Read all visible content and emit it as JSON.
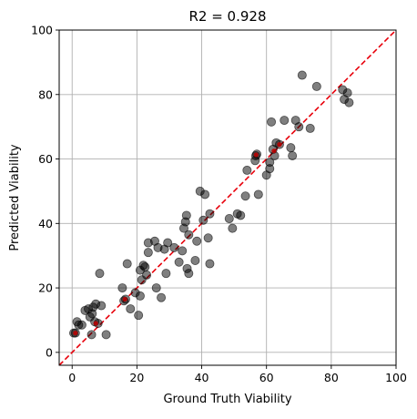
{
  "chart_data": {
    "type": "scatter",
    "title": "R2 = 0.928",
    "xlabel": "Ground Truth Viability",
    "ylabel": "Predicted Viability",
    "xlim": [
      -4,
      100
    ],
    "ylim": [
      -4,
      100
    ],
    "xticks": [
      0,
      20,
      40,
      60,
      80,
      100
    ],
    "yticks": [
      0,
      20,
      40,
      60,
      80,
      100
    ],
    "grid": true,
    "point_color": "#000000",
    "point_opacity": 0.5,
    "reference_line": {
      "style": "dashed",
      "color": "#e8000b",
      "from": [
        -4,
        -4
      ],
      "to": [
        100,
        100
      ]
    },
    "points": [
      [
        0.5,
        6
      ],
      [
        1,
        6
      ],
      [
        1.5,
        9.5
      ],
      [
        2,
        8.5
      ],
      [
        3,
        8.5
      ],
      [
        4,
        13
      ],
      [
        5,
        13.5
      ],
      [
        5.5,
        11
      ],
      [
        6,
        5.5
      ],
      [
        6.2,
        12
      ],
      [
        6.5,
        14
      ],
      [
        7,
        9.5
      ],
      [
        7.3,
        15
      ],
      [
        8,
        9
      ],
      [
        8.5,
        24.5
      ],
      [
        9,
        14.5
      ],
      [
        10.5,
        5.5
      ],
      [
        15.5,
        20
      ],
      [
        16,
        16
      ],
      [
        16.5,
        16.5
      ],
      [
        17,
        27.5
      ],
      [
        18,
        13.5
      ],
      [
        19.5,
        18.5
      ],
      [
        20.5,
        11.5
      ],
      [
        21,
        17.5
      ],
      [
        21,
        25.5
      ],
      [
        21.5,
        22.5
      ],
      [
        22,
        27
      ],
      [
        22.5,
        26.5
      ],
      [
        23,
        24
      ],
      [
        23.5,
        34
      ],
      [
        23.5,
        31
      ],
      [
        25.5,
        34.5
      ],
      [
        26,
        20
      ],
      [
        26.5,
        32.5
      ],
      [
        27.5,
        17
      ],
      [
        28.5,
        32
      ],
      [
        29,
        24.5
      ],
      [
        29.5,
        34
      ],
      [
        31.5,
        32.5
      ],
      [
        33,
        28
      ],
      [
        34,
        31.5
      ],
      [
        34.5,
        38.5
      ],
      [
        35,
        40.5
      ],
      [
        35.3,
        42.5
      ],
      [
        35.5,
        26
      ],
      [
        36,
        24.5
      ],
      [
        36,
        36.5
      ],
      [
        38,
        28.5
      ],
      [
        38.5,
        34.5
      ],
      [
        39.5,
        50
      ],
      [
        40.5,
        41
      ],
      [
        41,
        49
      ],
      [
        42,
        35.5
      ],
      [
        42.5,
        27.5
      ],
      [
        42.5,
        43
      ],
      [
        48.5,
        41.5
      ],
      [
        49.5,
        38.5
      ],
      [
        51,
        43
      ],
      [
        52,
        42.5
      ],
      [
        53.5,
        48.5
      ],
      [
        54,
        56.5
      ],
      [
        56.5,
        59.5
      ],
      [
        56.7,
        61
      ],
      [
        57,
        61.5
      ],
      [
        57.5,
        49
      ],
      [
        60,
        55
      ],
      [
        61,
        57
      ],
      [
        61,
        59
      ],
      [
        61.5,
        71.5
      ],
      [
        62,
        63
      ],
      [
        62.5,
        61
      ],
      [
        63,
        65
      ],
      [
        64,
        64.5
      ],
      [
        65.5,
        72
      ],
      [
        67.5,
        63.5
      ],
      [
        68,
        61
      ],
      [
        69,
        72
      ],
      [
        70,
        70
      ],
      [
        71,
        86
      ],
      [
        73.5,
        69.5
      ],
      [
        75.5,
        82.5
      ],
      [
        83.5,
        81.5
      ],
      [
        84,
        78.5
      ],
      [
        85,
        80.5
      ],
      [
        85.5,
        77.5
      ]
    ],
    "highlighted_points": [
      [
        1,
        6
      ],
      [
        7.3,
        9
      ],
      [
        16.3,
        16.5
      ],
      [
        56.8,
        61.3
      ],
      [
        62.3,
        62.5
      ],
      [
        64,
        64.5
      ]
    ],
    "highlight_color": "#c00000"
  }
}
